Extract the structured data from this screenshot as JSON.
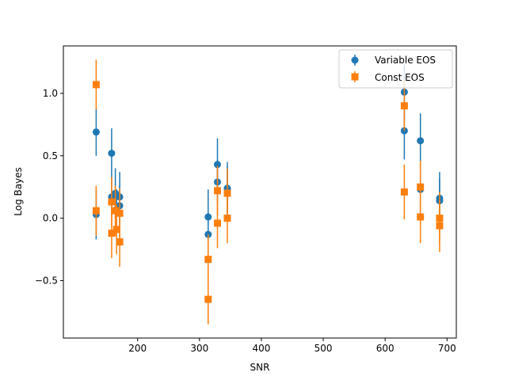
{
  "chart_data": {
    "type": "scatter",
    "title": "",
    "xlabel": "SNR",
    "ylabel": "Log Bayes",
    "xlim": [
      80,
      715
    ],
    "ylim": [
      -0.96,
      1.38
    ],
    "xticks": [
      200,
      300,
      400,
      500,
      600,
      700
    ],
    "xtick_labels": [
      "200",
      "300",
      "400",
      "500",
      "600",
      "700"
    ],
    "yticks": [
      -0.5,
      0.0,
      0.5,
      1.0
    ],
    "ytick_labels": [
      "−0.5",
      "0.0",
      "0.5",
      "1.0"
    ],
    "grid": false,
    "legend_position": "top-right",
    "series": [
      {
        "name": "Variable EOS",
        "color": "#1f77b4",
        "marker": "circle",
        "points": [
          {
            "x": 133,
            "y": 0.69,
            "err": 0.19
          },
          {
            "x": 133,
            "y": 0.03,
            "err": 0.2
          },
          {
            "x": 158,
            "y": 0.52,
            "err": 0.2
          },
          {
            "x": 158,
            "y": 0.17,
            "err": 0.16
          },
          {
            "x": 164,
            "y": 0.2,
            "err": 0.2
          },
          {
            "x": 166,
            "y": 0.07,
            "err": 0.16
          },
          {
            "x": 171,
            "y": 0.17,
            "err": 0.2
          },
          {
            "x": 171,
            "y": 0.1,
            "err": 0.16
          },
          {
            "x": 314,
            "y": 0.01,
            "err": 0.22
          },
          {
            "x": 314,
            "y": -0.13,
            "err": 0.18
          },
          {
            "x": 329,
            "y": 0.43,
            "err": 0.21
          },
          {
            "x": 329,
            "y": 0.29,
            "err": 0.18
          },
          {
            "x": 345,
            "y": 0.24,
            "err": 0.21
          },
          {
            "x": 345,
            "y": 0.23,
            "err": 0.18
          },
          {
            "x": 631,
            "y": 1.01,
            "err": 0.22
          },
          {
            "x": 631,
            "y": 0.7,
            "err": 0.23
          },
          {
            "x": 657,
            "y": 0.62,
            "err": 0.22
          },
          {
            "x": 657,
            "y": 0.23,
            "err": 0.2
          },
          {
            "x": 688,
            "y": 0.16,
            "err": 0.21
          },
          {
            "x": 688,
            "y": 0.14,
            "err": 0.18
          }
        ]
      },
      {
        "name": "Const EOS",
        "color": "#ff7f0e",
        "marker": "square",
        "points": [
          {
            "x": 133,
            "y": 1.07,
            "err": 0.2
          },
          {
            "x": 133,
            "y": 0.06,
            "err": 0.2
          },
          {
            "x": 158,
            "y": 0.13,
            "err": 0.2
          },
          {
            "x": 158,
            "y": -0.12,
            "err": 0.2
          },
          {
            "x": 164,
            "y": 0.06,
            "err": 0.2
          },
          {
            "x": 166,
            "y": -0.09,
            "err": 0.2
          },
          {
            "x": 171,
            "y": 0.04,
            "err": 0.2
          },
          {
            "x": 171,
            "y": -0.19,
            "err": 0.2
          },
          {
            "x": 314,
            "y": -0.33,
            "err": 0.2
          },
          {
            "x": 314,
            "y": -0.65,
            "err": 0.2
          },
          {
            "x": 329,
            "y": 0.22,
            "err": 0.2
          },
          {
            "x": 329,
            "y": -0.04,
            "err": 0.2
          },
          {
            "x": 345,
            "y": 0.2,
            "err": 0.2
          },
          {
            "x": 345,
            "y": 0.0,
            "err": 0.2
          },
          {
            "x": 631,
            "y": 0.9,
            "err": 0.2
          },
          {
            "x": 631,
            "y": 0.21,
            "err": 0.22
          },
          {
            "x": 657,
            "y": 0.25,
            "err": 0.21
          },
          {
            "x": 657,
            "y": 0.01,
            "err": 0.21
          },
          {
            "x": 688,
            "y": 0.0,
            "err": 0.21
          },
          {
            "x": 688,
            "y": -0.06,
            "err": 0.21
          }
        ]
      }
    ]
  }
}
